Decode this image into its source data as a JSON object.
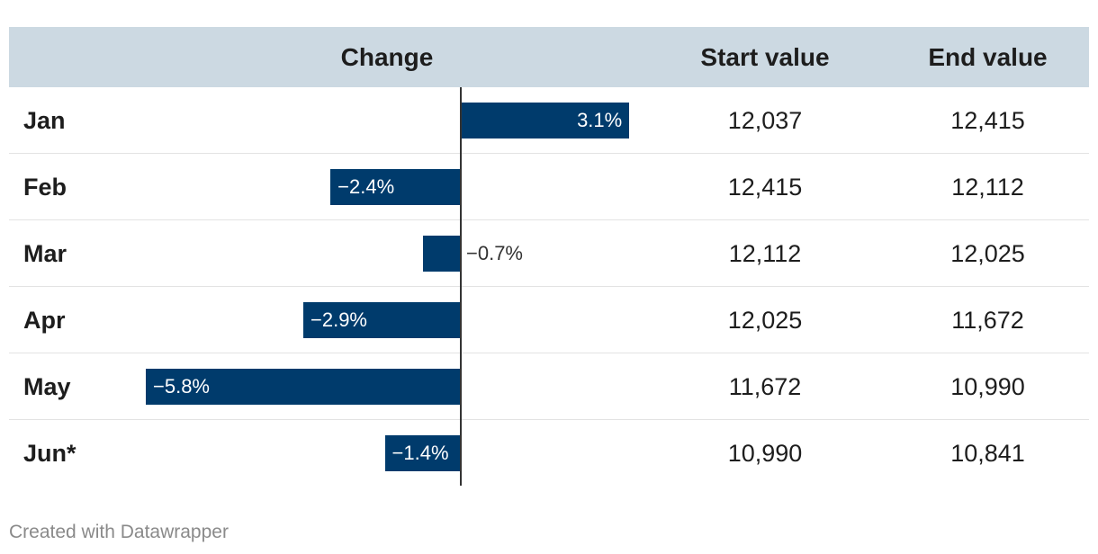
{
  "chart_data": {
    "type": "table",
    "columns": [
      "",
      "Change",
      "Start value",
      "End value"
    ],
    "rows": [
      {
        "month": "Jan",
        "change": 3.1,
        "change_label": "3.1%",
        "start": "12,037",
        "end": "12,415"
      },
      {
        "month": "Feb",
        "change": -2.4,
        "change_label": "−2.4%",
        "start": "12,415",
        "end": "12,112"
      },
      {
        "month": "Mar",
        "change": -0.7,
        "change_label": "−0.7%",
        "start": "12,112",
        "end": "12,025"
      },
      {
        "month": "Apr",
        "change": -2.9,
        "change_label": "−2.9%",
        "start": "12,025",
        "end": "11,672"
      },
      {
        "month": "May",
        "change": -5.8,
        "change_label": "−5.8%",
        "start": "11,672",
        "end": "10,990"
      },
      {
        "month": "Jun*",
        "change": -1.4,
        "change_label": "−1.4%",
        "start": "10,990",
        "end": "10,841"
      }
    ],
    "bar_color": "#003b6c",
    "header_color": "#ccd9e2"
  },
  "footer": "Created with Datawrapper"
}
